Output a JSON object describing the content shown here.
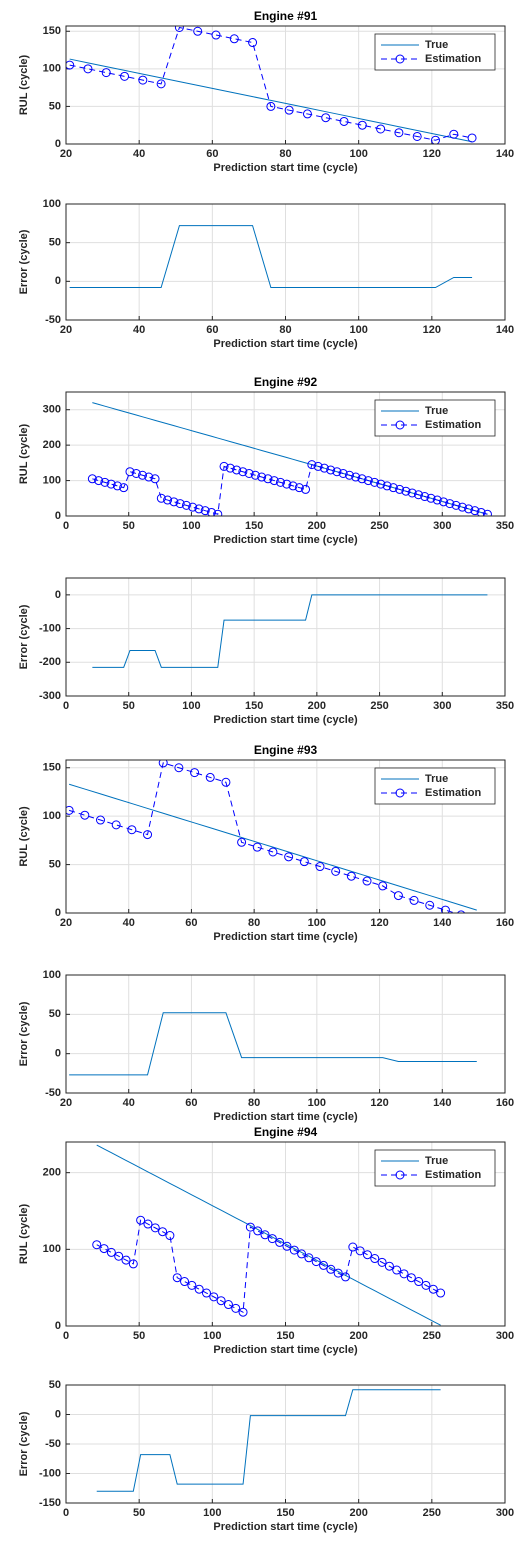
{
  "chart_data": [
    {
      "type": "line",
      "title": "Engine #91",
      "xlabel": "Prediction start time (cycle)",
      "ylabel": "RUL (cycle)",
      "x": [
        21,
        26,
        31,
        36,
        41,
        46,
        51,
        56,
        61,
        66,
        71,
        76,
        81,
        86,
        91,
        96,
        101,
        106,
        111,
        116,
        121,
        126,
        131
      ],
      "series": [
        {
          "name": "True",
          "color": "#0072bd",
          "linestyle": "-",
          "marker": "none",
          "values": [
            113,
            108,
            103,
            98,
            93,
            88,
            83,
            78,
            73,
            68,
            63,
            58,
            53,
            48,
            43,
            38,
            33,
            28,
            23,
            18,
            13,
            8,
            3
          ]
        },
        {
          "name": "Estimation",
          "color": "#0000ff",
          "linestyle": "--",
          "marker": "o",
          "values": [
            105,
            100,
            95,
            90,
            85,
            80,
            155,
            150,
            145,
            140,
            135,
            50,
            45,
            40,
            35,
            30,
            25,
            20,
            15,
            10,
            5,
            13,
            8
          ]
        }
      ],
      "xlim": [
        20,
        140
      ],
      "xticks": [
        20,
        40,
        60,
        80,
        100,
        120,
        140
      ],
      "ylim": [
        0,
        157
      ],
      "yticks": [
        0,
        50,
        100,
        150
      ],
      "grid": true,
      "legend": "upper right"
    },
    {
      "type": "line",
      "xlabel": "Prediction start time (cycle)",
      "ylabel": "Error (cycle)",
      "x": [
        21,
        26,
        31,
        36,
        41,
        46,
        51,
        56,
        61,
        66,
        71,
        76,
        81,
        86,
        91,
        96,
        101,
        106,
        111,
        116,
        121,
        126,
        131
      ],
      "series": [
        {
          "color": "#0072bd",
          "linestyle": "-",
          "marker": "none",
          "values": [
            -8,
            -8,
            -8,
            -8,
            -8,
            -8,
            72,
            72,
            72,
            72,
            72,
            -8,
            -8,
            -8,
            -8,
            -8,
            -8,
            -8,
            -8,
            -8,
            -8,
            5,
            5
          ]
        }
      ],
      "xlim": [
        20,
        140
      ],
      "xticks": [
        20,
        40,
        60,
        80,
        100,
        120,
        140
      ],
      "ylim": [
        -50,
        100
      ],
      "yticks": [
        -50,
        0,
        50,
        100
      ],
      "grid": true
    },
    {
      "type": "line",
      "title": "Engine #92",
      "xlabel": "Prediction start time (cycle)",
      "ylabel": "RUL (cycle)",
      "x": [
        21,
        26,
        31,
        36,
        41,
        46,
        51,
        56,
        61,
        66,
        71,
        76,
        81,
        86,
        91,
        96,
        101,
        106,
        111,
        116,
        121,
        126,
        131,
        136,
        141,
        146,
        151,
        156,
        161,
        166,
        171,
        176,
        181,
        186,
        191,
        196,
        201,
        206,
        211,
        216,
        221,
        226,
        231,
        236,
        241,
        246,
        251,
        256,
        261,
        266,
        271,
        276,
        281,
        286,
        291,
        296,
        301,
        306,
        311,
        316,
        321,
        326,
        331,
        336
      ],
      "series": [
        {
          "name": "True",
          "color": "#0072bd",
          "linestyle": "-",
          "marker": "none",
          "values": [
            320,
            315,
            310,
            305,
            300,
            295,
            290,
            285,
            280,
            275,
            270,
            265,
            260,
            255,
            250,
            245,
            240,
            235,
            230,
            225,
            220,
            215,
            210,
            205,
            200,
            195,
            190,
            185,
            180,
            175,
            170,
            165,
            160,
            155,
            150,
            145,
            140,
            135,
            130,
            125,
            120,
            115,
            110,
            105,
            100,
            95,
            90,
            85,
            80,
            75,
            70,
            65,
            60,
            55,
            50,
            45,
            40,
            35,
            30,
            25,
            20,
            15,
            10,
            5
          ]
        },
        {
          "name": "Estimation",
          "color": "#0000ff",
          "linestyle": "--",
          "marker": "o",
          "values": [
            105,
            100,
            95,
            90,
            85,
            80,
            125,
            120,
            115,
            110,
            105,
            50,
            45,
            40,
            35,
            30,
            25,
            20,
            15,
            10,
            5,
            140,
            135,
            130,
            125,
            120,
            115,
            110,
            105,
            100,
            95,
            90,
            85,
            80,
            75,
            145,
            140,
            135,
            130,
            125,
            120,
            115,
            110,
            105,
            100,
            95,
            90,
            85,
            80,
            75,
            70,
            65,
            60,
            55,
            50,
            45,
            40,
            35,
            30,
            25,
            20,
            15,
            10,
            5
          ]
        }
      ],
      "xlim": [
        0,
        350
      ],
      "xticks": [
        0,
        50,
        100,
        150,
        200,
        250,
        300,
        350
      ],
      "ylim": [
        0,
        350
      ],
      "yticks": [
        0,
        100,
        200,
        300
      ],
      "grid": true,
      "legend": "upper right"
    },
    {
      "type": "line",
      "xlabel": "Prediction start time (cycle)",
      "ylabel": "Error (cycle)",
      "x": [
        21,
        26,
        31,
        36,
        41,
        46,
        51,
        56,
        61,
        66,
        71,
        76,
        81,
        86,
        91,
        96,
        101,
        106,
        111,
        116,
        121,
        126,
        131,
        136,
        141,
        146,
        151,
        156,
        161,
        166,
        171,
        176,
        181,
        186,
        191,
        196,
        201,
        206,
        211,
        216,
        221,
        226,
        231,
        236,
        241,
        246,
        251,
        256,
        261,
        266,
        271,
        276,
        281,
        286,
        291,
        296,
        301,
        306,
        311,
        316,
        321,
        326,
        331,
        336
      ],
      "series": [
        {
          "color": "#0072bd",
          "linestyle": "-",
          "marker": "none",
          "values": [
            -215,
            -215,
            -215,
            -215,
            -215,
            -215,
            -165,
            -165,
            -165,
            -165,
            -165,
            -215,
            -215,
            -215,
            -215,
            -215,
            -215,
            -215,
            -215,
            -215,
            -215,
            -75,
            -75,
            -75,
            -75,
            -75,
            -75,
            -75,
            -75,
            -75,
            -75,
            -75,
            -75,
            -75,
            -75,
            0,
            0,
            0,
            0,
            0,
            0,
            0,
            0,
            0,
            0,
            0,
            0,
            0,
            0,
            0,
            0,
            0,
            0,
            0,
            0,
            0,
            0,
            0,
            0,
            0,
            0,
            0,
            0,
            0
          ]
        }
      ],
      "xlim": [
        0,
        350
      ],
      "xticks": [
        0,
        50,
        100,
        150,
        200,
        250,
        300,
        350
      ],
      "ylim": [
        -300,
        50
      ],
      "yticks": [
        -300,
        -200,
        -100,
        0
      ],
      "grid": true
    },
    {
      "type": "line",
      "title": "Engine #93",
      "xlabel": "Prediction start time (cycle)",
      "ylabel": "RUL (cycle)",
      "x": [
        21,
        26,
        31,
        36,
        41,
        46,
        51,
        56,
        61,
        66,
        71,
        76,
        81,
        86,
        91,
        96,
        101,
        106,
        111,
        116,
        121,
        126,
        131,
        136,
        141,
        146,
        151
      ],
      "series": [
        {
          "name": "True",
          "color": "#0072bd",
          "linestyle": "-",
          "marker": "none",
          "values": [
            133,
            128,
            123,
            118,
            113,
            108,
            103,
            98,
            93,
            88,
            83,
            78,
            73,
            68,
            63,
            58,
            53,
            48,
            43,
            38,
            33,
            28,
            23,
            18,
            13,
            8,
            3
          ]
        },
        {
          "name": "Estimation",
          "color": "#0000ff",
          "linestyle": "--",
          "marker": "o",
          "values": [
            106,
            101,
            96,
            91,
            86,
            81,
            155,
            150,
            145,
            140,
            135,
            73,
            68,
            63,
            58,
            53,
            48,
            43,
            38,
            33,
            28,
            18,
            13,
            8,
            3,
            -2,
            -7
          ]
        }
      ],
      "xlim": [
        20,
        160
      ],
      "xticks": [
        20,
        40,
        60,
        80,
        100,
        120,
        140,
        160
      ],
      "ylim": [
        0,
        158
      ],
      "yticks": [
        0,
        50,
        100,
        150
      ],
      "grid": true,
      "legend": "upper right"
    },
    {
      "type": "line",
      "xlabel": "Prediction start time (cycle)",
      "ylabel": "Error (cycle)",
      "x": [
        21,
        26,
        31,
        36,
        41,
        46,
        51,
        56,
        61,
        66,
        71,
        76,
        81,
        86,
        91,
        96,
        101,
        106,
        111,
        116,
        121,
        126,
        131,
        136,
        141,
        146,
        151
      ],
      "series": [
        {
          "color": "#0072bd",
          "linestyle": "-",
          "marker": "none",
          "values": [
            -27,
            -27,
            -27,
            -27,
            -27,
            -27,
            52,
            52,
            52,
            52,
            52,
            -5,
            -5,
            -5,
            -5,
            -5,
            -5,
            -5,
            -5,
            -5,
            -5,
            -10,
            -10,
            -10,
            -10,
            -10,
            -10
          ]
        }
      ],
      "xlim": [
        20,
        160
      ],
      "xticks": [
        20,
        40,
        60,
        80,
        100,
        120,
        140,
        160
      ],
      "ylim": [
        -50,
        100
      ],
      "yticks": [
        -50,
        0,
        50,
        100
      ],
      "grid": true
    },
    {
      "type": "line",
      "title": "Engine #94",
      "xlabel": "Prediction start time (cycle)",
      "ylabel": "RUL (cycle)",
      "x": [
        21,
        26,
        31,
        36,
        41,
        46,
        51,
        56,
        61,
        66,
        71,
        76,
        81,
        86,
        91,
        96,
        101,
        106,
        111,
        116,
        121,
        126,
        131,
        136,
        141,
        146,
        151,
        156,
        161,
        166,
        171,
        176,
        181,
        186,
        191,
        196,
        201,
        206,
        211,
        216,
        221,
        226,
        231,
        236,
        241,
        246,
        251,
        256
      ],
      "series": [
        {
          "name": "True",
          "color": "#0072bd",
          "linestyle": "-",
          "marker": "none",
          "values": [
            236,
            231,
            226,
            221,
            216,
            211,
            206,
            201,
            196,
            191,
            186,
            181,
            176,
            171,
            166,
            161,
            156,
            151,
            146,
            141,
            136,
            131,
            126,
            121,
            116,
            111,
            106,
            101,
            96,
            91,
            86,
            81,
            76,
            71,
            66,
            61,
            56,
            51,
            46,
            41,
            36,
            31,
            26,
            21,
            16,
            11,
            6,
            1
          ]
        },
        {
          "name": "Estimation",
          "color": "#0000ff",
          "linestyle": "--",
          "marker": "o",
          "values": [
            106,
            101,
            96,
            91,
            86,
            81,
            138,
            133,
            128,
            123,
            118,
            63,
            58,
            53,
            48,
            43,
            38,
            33,
            28,
            23,
            18,
            129,
            124,
            119,
            114,
            109,
            104,
            99,
            94,
            89,
            84,
            79,
            74,
            69,
            64,
            103,
            98,
            93,
            88,
            83,
            78,
            73,
            68,
            63,
            58,
            53,
            48,
            43
          ]
        }
      ],
      "xlim": [
        0,
        300
      ],
      "xticks": [
        0,
        50,
        100,
        150,
        200,
        250,
        300
      ],
      "ylim": [
        0,
        240
      ],
      "yticks": [
        0,
        100,
        200
      ],
      "grid": true,
      "legend": "upper right"
    },
    {
      "type": "line",
      "xlabel": "Prediction start time (cycle)",
      "ylabel": "Error (cycle)",
      "x": [
        21,
        26,
        31,
        36,
        41,
        46,
        51,
        56,
        61,
        66,
        71,
        76,
        81,
        86,
        91,
        96,
        101,
        106,
        111,
        116,
        121,
        126,
        131,
        136,
        141,
        146,
        151,
        156,
        161,
        166,
        171,
        176,
        181,
        186,
        191,
        196,
        201,
        206,
        211,
        216,
        221,
        226,
        231,
        236,
        241,
        246,
        251,
        256
      ],
      "series": [
        {
          "color": "#0072bd",
          "linestyle": "-",
          "marker": "none",
          "values": [
            -130,
            -130,
            -130,
            -130,
            -130,
            -130,
            -68,
            -68,
            -68,
            -68,
            -68,
            -118,
            -118,
            -118,
            -118,
            -118,
            -118,
            -118,
            -118,
            -118,
            -118,
            -2,
            -2,
            -2,
            -2,
            -2,
            -2,
            -2,
            -2,
            -2,
            -2,
            -2,
            -2,
            -2,
            -2,
            42,
            42,
            42,
            42,
            42,
            42,
            42,
            42,
            42,
            42,
            42,
            42,
            42
          ]
        }
      ],
      "xlim": [
        0,
        300
      ],
      "xticks": [
        0,
        50,
        100,
        150,
        200,
        250,
        300
      ],
      "ylim": [
        -150,
        50
      ],
      "yticks": [
        -150,
        -100,
        -50,
        0,
        50
      ],
      "grid": true
    }
  ]
}
